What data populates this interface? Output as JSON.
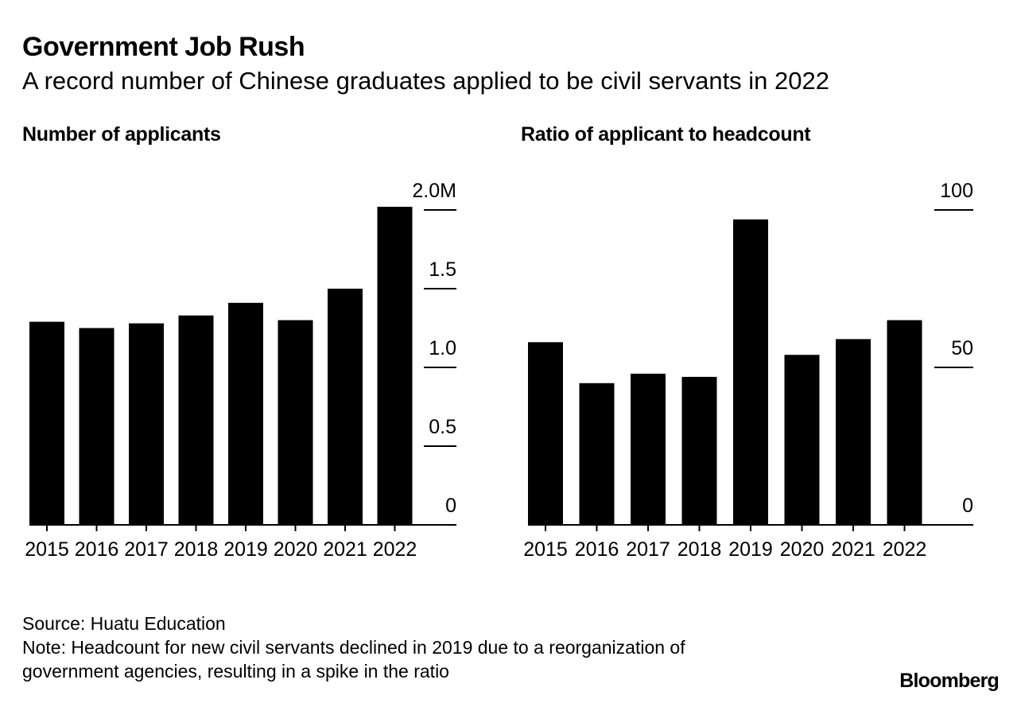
{
  "header": {
    "title": "Government Job Rush",
    "subtitle": "A record number of Chinese graduates applied to be civil servants in 2022"
  },
  "footer": {
    "source": "Source: Huatu Education",
    "note_line1": "Note: Headcount for new civil servants declined in 2019 due to a reorganization of",
    "note_line2": "government agencies, resulting in a spike in the ratio",
    "brand": "Bloomberg"
  },
  "colors": {
    "bar": "#000000",
    "background": "#ffffff",
    "text": "#000000"
  },
  "chart_data": [
    {
      "type": "bar",
      "title": "Number of applicants",
      "categories": [
        "2015",
        "2016",
        "2017",
        "2018",
        "2019",
        "2020",
        "2021",
        "2022"
      ],
      "values": [
        1.29,
        1.25,
        1.28,
        1.33,
        1.41,
        1.3,
        1.5,
        2.02
      ],
      "unit": "M",
      "ylim": [
        0,
        2.0
      ],
      "yticks": [
        0,
        0.5,
        1.0,
        1.5,
        2.0
      ],
      "ytick_labels": [
        "0",
        "0.5",
        "1.0",
        "1.5",
        "2.0M"
      ],
      "y_axis_position": "right",
      "grid": false
    },
    {
      "type": "bar",
      "title": "Ratio of applicant to headcount",
      "categories": [
        "2015",
        "2016",
        "2017",
        "2018",
        "2019",
        "2020",
        "2021",
        "2022"
      ],
      "values": [
        58,
        45,
        48,
        47,
        97,
        54,
        59,
        65
      ],
      "ylim": [
        0,
        100
      ],
      "yticks": [
        0,
        50,
        100
      ],
      "ytick_labels": [
        "0",
        "50",
        "100"
      ],
      "y_axis_position": "right",
      "grid": false
    }
  ]
}
